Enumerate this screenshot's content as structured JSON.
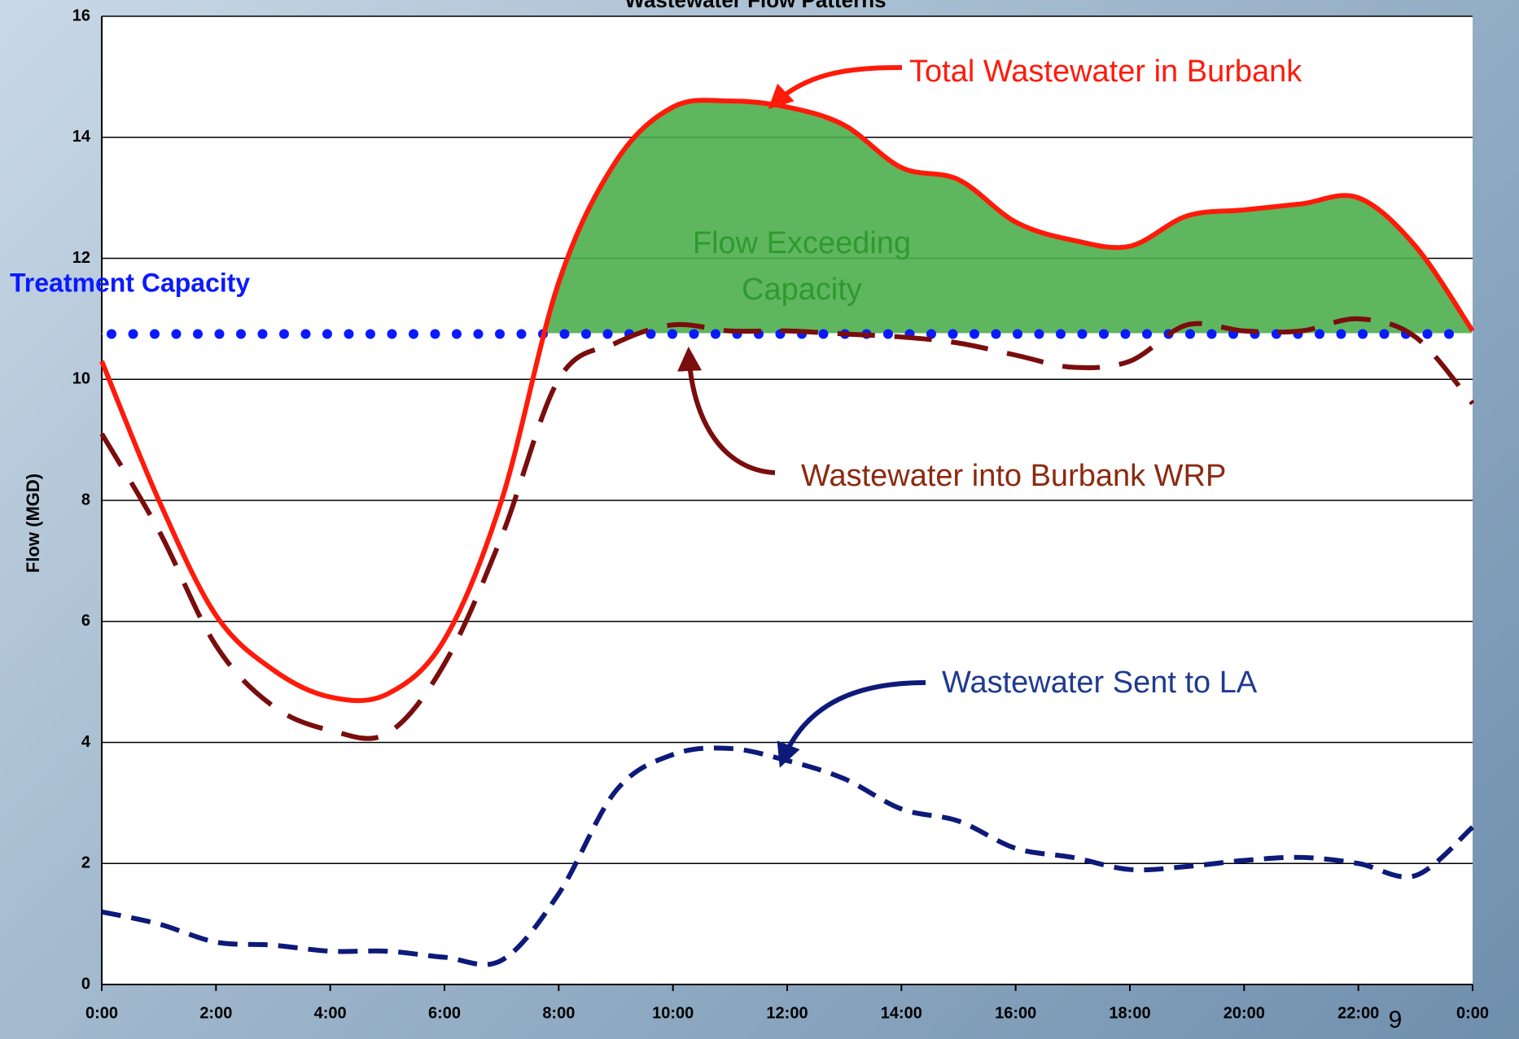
{
  "chart_data": {
    "type": "line",
    "title": "Wastewater Flow Patterns",
    "ylabel": "Flow (MGD)",
    "x": [
      0,
      1,
      2,
      3,
      4,
      5,
      6,
      7,
      8,
      9,
      10,
      11,
      12,
      13,
      14,
      15,
      16,
      17,
      18,
      19,
      20,
      21,
      22,
      23,
      24
    ],
    "xlim": [
      0,
      24
    ],
    "xticks": [
      {
        "value": 0,
        "label": "0:00"
      },
      {
        "value": 2,
        "label": "2:00"
      },
      {
        "value": 4,
        "label": "4:00"
      },
      {
        "value": 6,
        "label": "6:00"
      },
      {
        "value": 8,
        "label": "8:00"
      },
      {
        "value": 10,
        "label": "10:00"
      },
      {
        "value": 12,
        "label": "12:00"
      },
      {
        "value": 14,
        "label": "14:00"
      },
      {
        "value": 16,
        "label": "16:00"
      },
      {
        "value": 18,
        "label": "18:00"
      },
      {
        "value": 20,
        "label": "20:00"
      },
      {
        "value": 22,
        "label": "22:00"
      },
      {
        "value": 24,
        "label": "0:00"
      }
    ],
    "ylim": [
      0,
      16
    ],
    "yticks": [
      0,
      2,
      4,
      6,
      8,
      10,
      12,
      14,
      16
    ],
    "grid": true,
    "series": [
      {
        "name": "Total Wastewater in Burbank",
        "color": "#ff1a0a",
        "style": "solid",
        "values": [
          10.3,
          8.0,
          6.1,
          5.2,
          4.75,
          4.8,
          5.7,
          8.0,
          11.6,
          13.6,
          14.5,
          14.6,
          14.5,
          14.2,
          13.5,
          13.3,
          12.6,
          12.3,
          12.2,
          12.7,
          12.8,
          12.9,
          13.0,
          12.2,
          10.8
        ]
      },
      {
        "name": "Wastewater into Burbank WRP",
        "color": "#7a0d0d",
        "style": "longdash",
        "values": [
          9.1,
          7.5,
          5.6,
          4.6,
          4.2,
          4.15,
          5.3,
          7.4,
          10.0,
          10.6,
          10.9,
          10.8,
          10.8,
          10.75,
          10.7,
          10.6,
          10.4,
          10.2,
          10.3,
          10.9,
          10.8,
          10.8,
          11.0,
          10.7,
          9.6
        ]
      },
      {
        "name": "Wastewater Sent to LA",
        "color": "#0d1a7a",
        "style": "dash",
        "values": [
          1.2,
          1.0,
          0.7,
          0.65,
          0.55,
          0.55,
          0.45,
          0.4,
          1.5,
          3.2,
          3.8,
          3.9,
          3.7,
          3.4,
          2.9,
          2.7,
          2.25,
          2.1,
          1.9,
          1.95,
          2.05,
          2.1,
          2.0,
          1.8,
          2.6
        ]
      }
    ],
    "capacity": {
      "label": "Treatment Capacity",
      "value": 10.75,
      "color": "#0a1aff"
    },
    "exceed": {
      "lines": [
        "Flow Exceeding",
        "Capacity"
      ],
      "color": "#2f9a2f",
      "fill": "#4cae4c"
    },
    "page_number": "9"
  }
}
